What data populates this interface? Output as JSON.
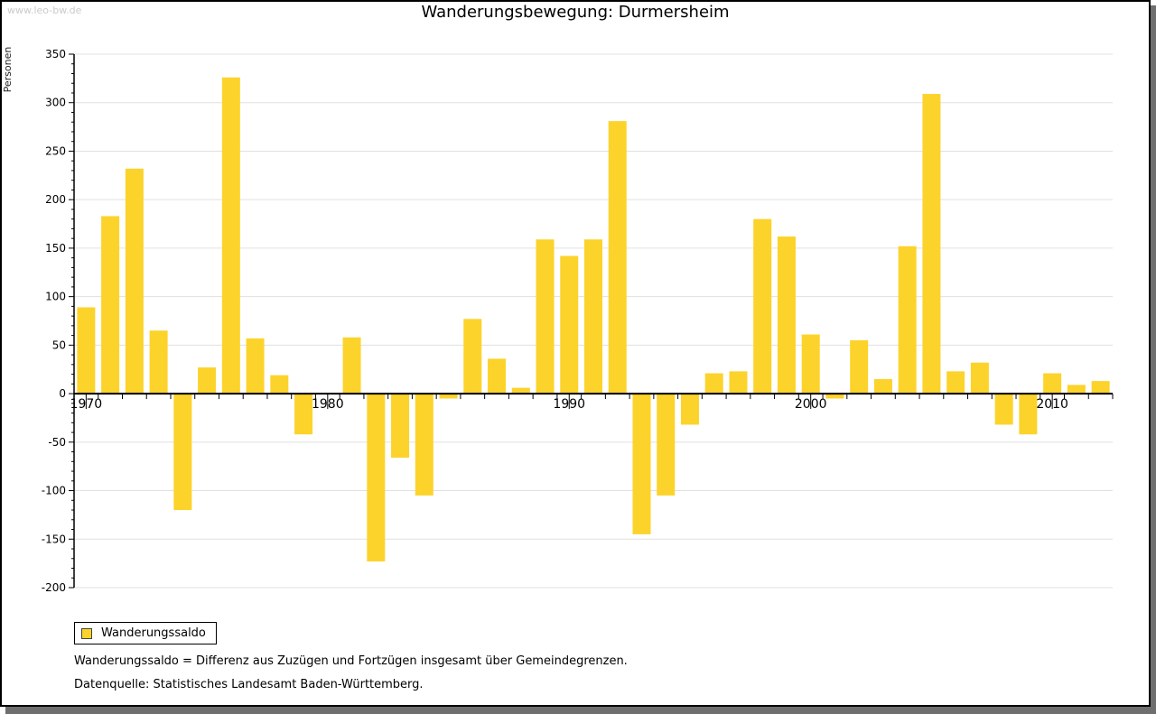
{
  "watermark": "www.leo-bw.de",
  "title": "Wanderungsbewegung: Durmersheim",
  "y_axis_label": "Personen",
  "legend": {
    "label": "Wanderungssaldo"
  },
  "footnotes": {
    "definition": "Wanderungssaldo = Differenz aus Zuzügen und Fortzügen insgesamt über Gemeindegrenzen.",
    "source": "Datenquelle: Statistisches Landesamt Baden-Württemberg."
  },
  "colors": {
    "bar": "#FCD32B",
    "grid": "#e0e0e0",
    "axis": "#000000",
    "watermark": "#cbcbcb",
    "shadow": "#6f6f6f"
  },
  "chart_data": {
    "type": "bar",
    "title": "Wanderungsbewegung: Durmersheim",
    "ylabel": "Personen",
    "series_name": "Wanderungssaldo",
    "ylim": [
      -200,
      350
    ],
    "ytick_major_step": 50,
    "ytick_minor_step": 10,
    "grid": "horizontal",
    "legend_position": "bottom-left",
    "xtick_labels": [
      "1970",
      "1980",
      "1990",
      "2000",
      "2010"
    ],
    "years": [
      1970,
      1971,
      1972,
      1973,
      1974,
      1975,
      1976,
      1977,
      1978,
      1979,
      1980,
      1981,
      1982,
      1983,
      1984,
      1985,
      1986,
      1987,
      1988,
      1989,
      1990,
      1991,
      1992,
      1993,
      1994,
      1995,
      1996,
      1997,
      1998,
      1999,
      2000,
      2001,
      2002,
      2003,
      2004,
      2005,
      2006,
      2007,
      2008,
      2009,
      2010,
      2011,
      2012
    ],
    "values": [
      89,
      183,
      232,
      65,
      -120,
      27,
      326,
      57,
      19,
      -42,
      0,
      58,
      -173,
      -66,
      -105,
      -5,
      77,
      36,
      6,
      159,
      142,
      159,
      281,
      -145,
      -105,
      -32,
      21,
      23,
      180,
      162,
      61,
      -5,
      55,
      15,
      152,
      309,
      23,
      32,
      -32,
      -42,
      21,
      9,
      13
    ]
  }
}
